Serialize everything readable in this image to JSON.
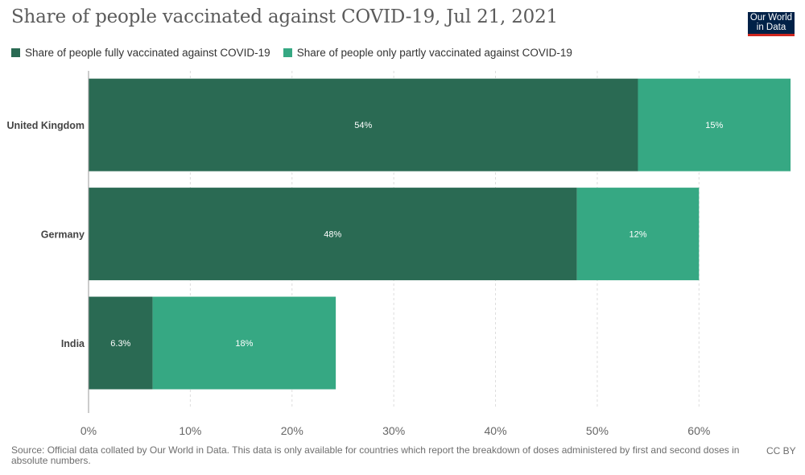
{
  "header": {
    "title": "Share of people vaccinated against COVID-19, Jul 21, 2021",
    "logo_line1": "Our World",
    "logo_line2": "in Data"
  },
  "colors": {
    "fully": "#2a6a53",
    "partly": "#36a883",
    "grid": "#dddddd",
    "axis": "#999999"
  },
  "chart_data": {
    "type": "bar",
    "orientation": "horizontal",
    "stacked": true,
    "categories": [
      "United Kingdom",
      "Germany",
      "India"
    ],
    "series": [
      {
        "name": "Share of people fully vaccinated against COVID-19",
        "values": [
          54,
          48,
          6.3
        ],
        "labels": [
          "54%",
          "48%",
          "6.3%"
        ]
      },
      {
        "name": "Share of people only partly vaccinated against COVID-19",
        "values": [
          15,
          12,
          18
        ],
        "labels": [
          "15%",
          "12%",
          "18%"
        ]
      }
    ],
    "xlim": [
      0,
      68.6
    ],
    "xticks": [
      0,
      10,
      20,
      30,
      40,
      50,
      60
    ],
    "xtick_labels": [
      "0%",
      "10%",
      "20%",
      "30%",
      "40%",
      "50%",
      "60%"
    ],
    "grid": true,
    "legend_position": "top-left"
  },
  "footer": {
    "source": "Source: Official data collated by Our World in Data. This data is only available for countries which report the breakdown of doses administered by first and second doses in absolute numbers.",
    "license": "CC BY"
  }
}
